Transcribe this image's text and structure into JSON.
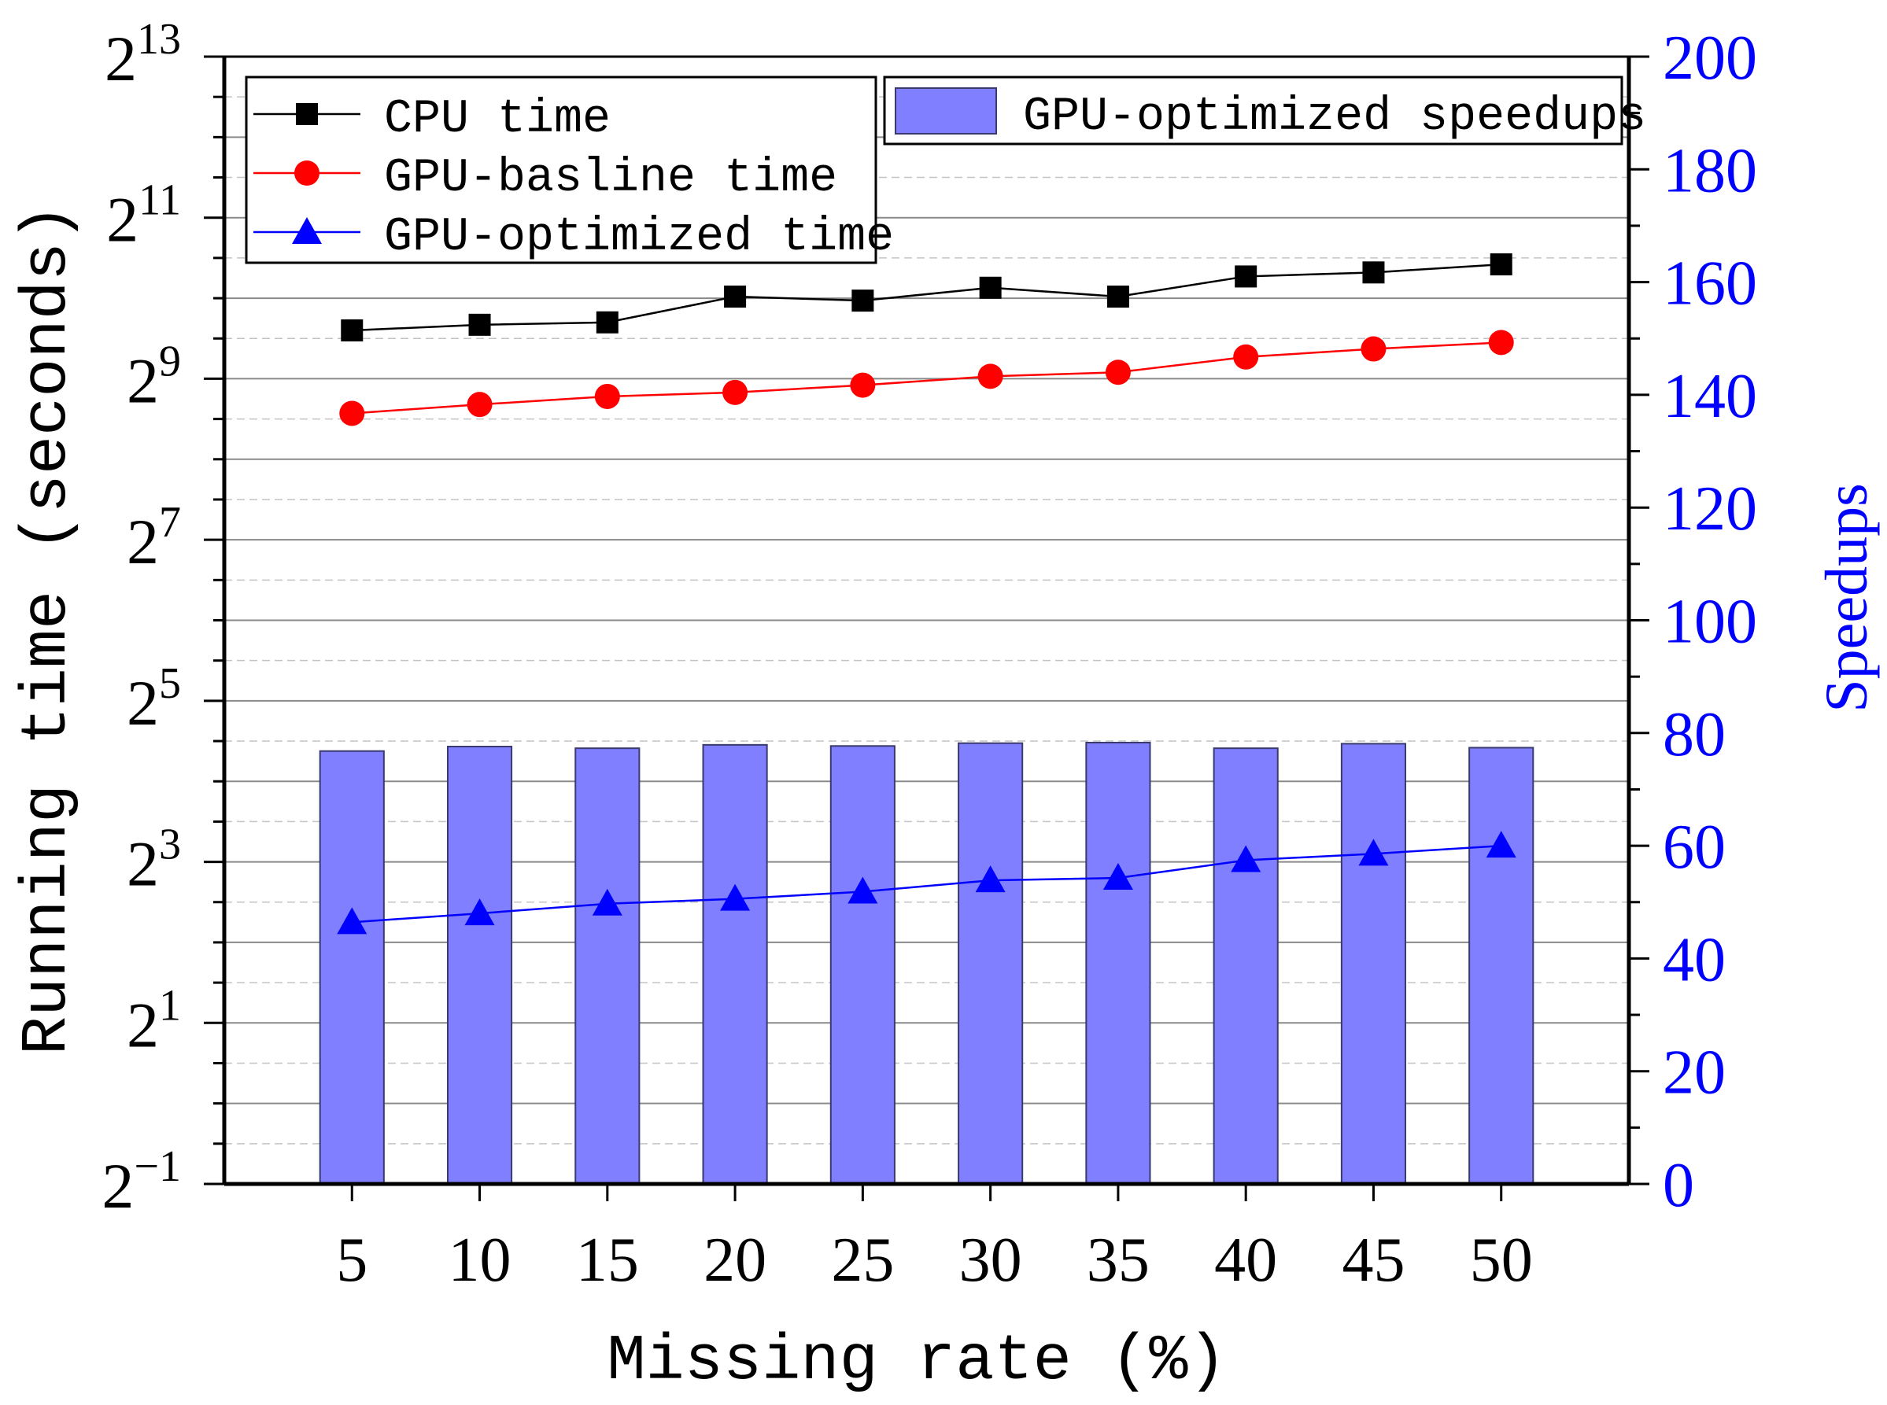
{
  "chart_data": {
    "type": "bar",
    "title": "",
    "xlabel": "Missing rate (%)",
    "ylabel": "Running time (seconds)",
    "y2label": "Speedups",
    "categories": [
      "5",
      "10",
      "15",
      "20",
      "25",
      "30",
      "35",
      "40",
      "45",
      "50"
    ],
    "y_left": {
      "scale": "log2",
      "range_exponent": [
        -1,
        13
      ],
      "tick_base": "2",
      "tick_exponents": [
        "-1",
        "1",
        "3",
        "5",
        "7",
        "9",
        "11",
        "13"
      ]
    },
    "y_right": {
      "range": [
        0,
        200
      ],
      "ticks": [
        "0",
        "20",
        "40",
        "60",
        "80",
        "100",
        "120",
        "140",
        "160",
        "180",
        "200"
      ]
    },
    "series": [
      {
        "name": "CPU time",
        "axis": "left",
        "type": "line",
        "marker": "square",
        "color": "#000000",
        "exponents": [
          9.6,
          9.67,
          9.7,
          10.02,
          9.97,
          10.13,
          10.02,
          10.27,
          10.32,
          10.42
        ]
      },
      {
        "name": "GPU-basline time",
        "axis": "left",
        "type": "line",
        "marker": "circle",
        "color": "#ff0000",
        "exponents": [
          8.57,
          8.68,
          8.78,
          8.83,
          8.92,
          9.03,
          9.08,
          9.27,
          9.37,
          9.45
        ]
      },
      {
        "name": "GPU-optimized time",
        "axis": "left",
        "type": "line",
        "marker": "triangle",
        "color": "#0000ff",
        "exponents": [
          2.25,
          2.36,
          2.48,
          2.54,
          2.63,
          2.77,
          2.8,
          3.02,
          3.1,
          3.2
        ]
      },
      {
        "name": "GPU-optimized speedups",
        "axis": "right",
        "type": "bar",
        "color": "#7f7fff",
        "values": [
          76.8,
          77.6,
          77.3,
          77.9,
          77.7,
          78.2,
          78.3,
          77.3,
          78.1,
          77.4
        ]
      }
    ],
    "colors": {
      "right_axis": "#0000ff",
      "bar_fill": "#7f7fff",
      "bar_edge": "#3a3a6e"
    },
    "grid": true,
    "legend": {
      "line_legend": "top-left",
      "bar_legend": "top-right"
    }
  }
}
